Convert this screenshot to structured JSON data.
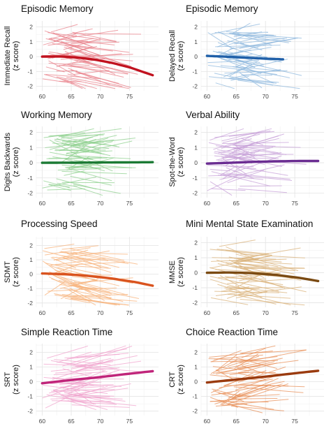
{
  "chart_data": [
    {
      "type": "line",
      "title": "Episodic Memory",
      "ylabel_lines": [
        "Immediate Recall",
        "(z score)"
      ],
      "xlabel": "",
      "xlim": [
        59,
        80
      ],
      "ylim": [
        -2.3,
        2.4
      ],
      "x_ticks": [
        60,
        65,
        70,
        75
      ],
      "y_ticks": [
        -2,
        -1,
        0,
        1,
        2
      ],
      "indiv_color": "#e8808a",
      "trend_color": "#c1121f",
      "trend": {
        "x": [
          60,
          63,
          66,
          69,
          72,
          75,
          79
        ],
        "y": [
          0.0,
          0.01,
          -0.06,
          -0.2,
          -0.42,
          -0.72,
          -1.25
        ]
      },
      "individual_lines_note": "many individual participant trajectories between ages 60 and 76"
    },
    {
      "type": "line",
      "title": "Episodic Memory",
      "ylabel_lines": [
        "Delayed Recall",
        "(z score)"
      ],
      "xlabel": "",
      "xlim": [
        59,
        80
      ],
      "ylim": [
        -2.3,
        2.4
      ],
      "x_ticks": [
        60,
        65,
        70,
        75
      ],
      "y_ticks": [
        -2,
        -1,
        0,
        1,
        2
      ],
      "indiv_color": "#8fb8de",
      "trend_color": "#1f5fa8",
      "trend": {
        "x": [
          60,
          63,
          66,
          69,
          73
        ],
        "y": [
          0.05,
          0.0,
          -0.06,
          -0.12,
          -0.18
        ]
      }
    },
    {
      "type": "line",
      "title": "Working Memory",
      "ylabel_lines": [
        "Digits Backwards",
        "(z score)"
      ],
      "xlabel": "",
      "xlim": [
        59,
        80
      ],
      "ylim": [
        -2.3,
        2.4
      ],
      "x_ticks": [
        60,
        65,
        70,
        75
      ],
      "y_ticks": [
        -2,
        -1,
        0,
        1,
        2
      ],
      "indiv_color": "#8fd08f",
      "trend_color": "#1b7a34",
      "trend": {
        "x": [
          60,
          65,
          70,
          75,
          79
        ],
        "y": [
          0.0,
          0.01,
          0.02,
          0.03,
          0.04
        ]
      }
    },
    {
      "type": "line",
      "title": "Verbal Ability",
      "ylabel_lines": [
        "Spot-the-Word",
        "(z score)"
      ],
      "xlabel": "",
      "xlim": [
        59,
        80
      ],
      "ylim": [
        -2.3,
        2.4
      ],
      "x_ticks": [
        60,
        65,
        70,
        75
      ],
      "y_ticks": [
        -2,
        -1,
        0,
        1,
        2
      ],
      "indiv_color": "#c7a0d8",
      "trend_color": "#6a2c91",
      "trend": {
        "x": [
          60,
          64,
          68,
          72,
          76,
          79
        ],
        "y": [
          -0.05,
          0.0,
          0.06,
          0.1,
          0.12,
          0.12
        ]
      }
    },
    {
      "type": "line",
      "title": "Processing Speed",
      "ylabel_lines": [
        "SDMT",
        "(z score)"
      ],
      "xlabel": "",
      "xlim": [
        59,
        80
      ],
      "ylim": [
        -2.3,
        2.6
      ],
      "x_ticks": [
        60,
        65,
        70,
        75
      ],
      "y_ticks": [
        -2,
        -1,
        0,
        1,
        2
      ],
      "indiv_color": "#f7b27a",
      "trend_color": "#d9531e",
      "trend": {
        "x": [
          60,
          64,
          68,
          72,
          76,
          79
        ],
        "y": [
          0.05,
          0.0,
          -0.12,
          -0.3,
          -0.55,
          -0.8
        ]
      }
    },
    {
      "type": "line",
      "title": "Mini Mental State Examination",
      "ylabel_lines": [
        "MMSE",
        "(z score)"
      ],
      "xlabel": "",
      "xlim": [
        59,
        80
      ],
      "ylim": [
        -2.3,
        2.4
      ],
      "x_ticks": [
        60,
        65,
        70,
        75
      ],
      "y_ticks": [
        -2,
        -1,
        0,
        1,
        2
      ],
      "indiv_color": "#d9b27a",
      "trend_color": "#7a4a12",
      "trend": {
        "x": [
          60,
          64,
          68,
          72,
          76,
          79
        ],
        "y": [
          0.0,
          0.02,
          -0.03,
          -0.15,
          -0.35,
          -0.55
        ]
      }
    },
    {
      "type": "line",
      "title": "Simple Reaction Time",
      "ylabel_lines": [
        "SRT",
        "(z score)"
      ],
      "xlabel": "",
      "xlim": [
        59,
        80
      ],
      "ylim": [
        -2.3,
        2.6
      ],
      "x_ticks": [
        60,
        65,
        70,
        75
      ],
      "y_ticks": [
        -2,
        -1,
        0,
        1,
        2
      ],
      "indiv_color": "#f0a4cd",
      "trend_color": "#c0247a",
      "trend": {
        "x": [
          60,
          65,
          70,
          75,
          79
        ],
        "y": [
          -0.1,
          0.12,
          0.32,
          0.55,
          0.72
        ]
      }
    },
    {
      "type": "line",
      "title": "Choice Reaction Time",
      "ylabel_lines": [
        "CRT",
        "(z score)"
      ],
      "xlabel": "",
      "xlim": [
        59,
        80
      ],
      "ylim": [
        -2.3,
        2.6
      ],
      "x_ticks": [
        60,
        65,
        70,
        75
      ],
      "y_ticks": [
        -2,
        -1,
        0,
        1,
        2
      ],
      "indiv_color": "#e8905a",
      "trend_color": "#9a3a0e",
      "trend": {
        "x": [
          60,
          65,
          70,
          75,
          79
        ],
        "y": [
          -0.05,
          0.15,
          0.35,
          0.58,
          0.75
        ]
      }
    }
  ]
}
